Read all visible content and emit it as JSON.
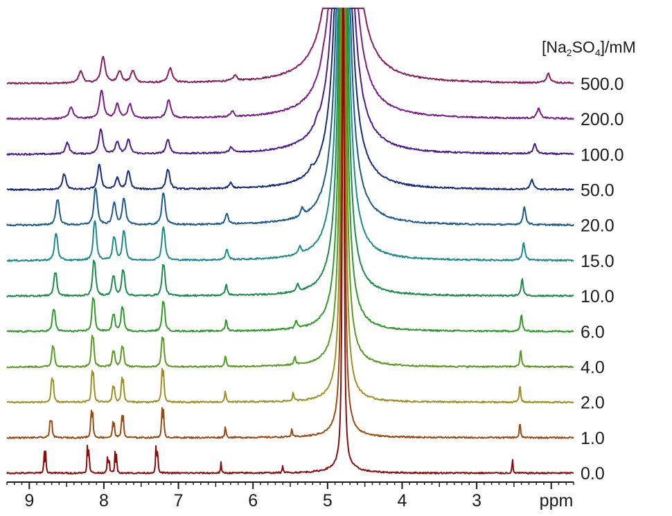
{
  "chart_data": {
    "type": "line",
    "title": "",
    "xlabel": "ppm",
    "ylabel": "",
    "xlim": [
      9.3,
      1.7
    ],
    "x_reversed": true,
    "x_ticks": [
      9,
      8,
      7,
      6,
      5,
      4,
      3
    ],
    "grid": false,
    "legend_title": {
      "prefix": "[Na",
      "sub1": "2",
      "mid": "SO",
      "sub2": "4",
      "suffix": "]/mM"
    },
    "water_peak_ppm": 4.79,
    "series": [
      {
        "name": "0.0",
        "color": "#8b0a0a",
        "peaks": [
          8.8,
          8.22,
          7.95,
          7.85,
          7.3,
          6.43,
          5.6,
          2.52
        ],
        "heights": [
          32,
          42,
          26,
          30,
          42,
          16,
          12,
          22
        ]
      },
      {
        "name": "1.0",
        "color": "#9b4a12",
        "peaks": [
          8.72,
          8.17,
          7.88,
          7.76,
          7.22,
          6.37,
          5.48,
          2.42
        ],
        "heights": [
          28,
          38,
          20,
          30,
          38,
          18,
          12,
          24
        ]
      },
      {
        "name": "2.0",
        "color": "#9c9020",
        "peaks": [
          8.7,
          8.16,
          7.88,
          7.76,
          7.22,
          6.37,
          5.46,
          2.42
        ],
        "heights": [
          30,
          40,
          20,
          30,
          40,
          16,
          12,
          26
        ]
      },
      {
        "name": "4.0",
        "color": "#5a9a20",
        "peaks": [
          8.69,
          8.16,
          7.88,
          7.76,
          7.22,
          6.37,
          5.44,
          2.41
        ],
        "heights": [
          24,
          36,
          18,
          24,
          34,
          16,
          12,
          24
        ]
      },
      {
        "name": "6.0",
        "color": "#2e9a28",
        "peaks": [
          8.68,
          8.15,
          7.88,
          7.76,
          7.21,
          6.36,
          5.42,
          2.4
        ],
        "heights": [
          24,
          36,
          18,
          26,
          32,
          16,
          12,
          24
        ]
      },
      {
        "name": "10.0",
        "color": "#1a8a4a",
        "peaks": [
          8.66,
          8.14,
          7.88,
          7.75,
          7.21,
          6.36,
          5.4,
          2.39
        ],
        "heights": [
          24,
          36,
          20,
          26,
          32,
          16,
          12,
          24
        ]
      },
      {
        "name": "15.0",
        "color": "#1a8a8a",
        "peaks": [
          8.65,
          8.13,
          7.87,
          7.74,
          7.21,
          6.35,
          5.37,
          2.37
        ],
        "heights": [
          26,
          38,
          22,
          28,
          32,
          16,
          12,
          26
        ]
      },
      {
        "name": "20.0",
        "color": "#1a5a8a",
        "peaks": [
          8.63,
          8.12,
          7.87,
          7.74,
          7.21,
          6.35,
          5.34,
          2.36
        ],
        "heights": [
          24,
          34,
          20,
          24,
          30,
          16,
          12,
          26
        ]
      },
      {
        "name": "50.0",
        "color": "#152a7a",
        "peaks": [
          8.54,
          8.07,
          7.83,
          7.68,
          7.15,
          6.3,
          5.22,
          2.26
        ],
        "heights": [
          14,
          22,
          10,
          16,
          18,
          8,
          6,
          14
        ]
      },
      {
        "name": "100.0",
        "color": "#4a1a8a",
        "peaks": [
          8.5,
          8.05,
          7.83,
          7.68,
          7.15,
          6.29,
          5.14,
          2.22
        ],
        "heights": [
          10,
          22,
          10,
          12,
          12,
          8,
          6,
          14
        ]
      },
      {
        "name": "200.0",
        "color": "#7a1a8a",
        "peaks": [
          8.45,
          8.04,
          7.83,
          7.66,
          7.14,
          6.28,
          5.06,
          2.17
        ],
        "heights": [
          10,
          24,
          12,
          12,
          16,
          8,
          6,
          14
        ]
      },
      {
        "name": "500.0",
        "color": "#8a1a5a",
        "peaks": [
          8.32,
          8.02,
          7.8,
          7.62,
          7.12,
          6.24,
          4.98,
          2.04
        ],
        "heights": [
          10,
          22,
          10,
          10,
          12,
          8,
          4,
          14
        ]
      }
    ]
  }
}
